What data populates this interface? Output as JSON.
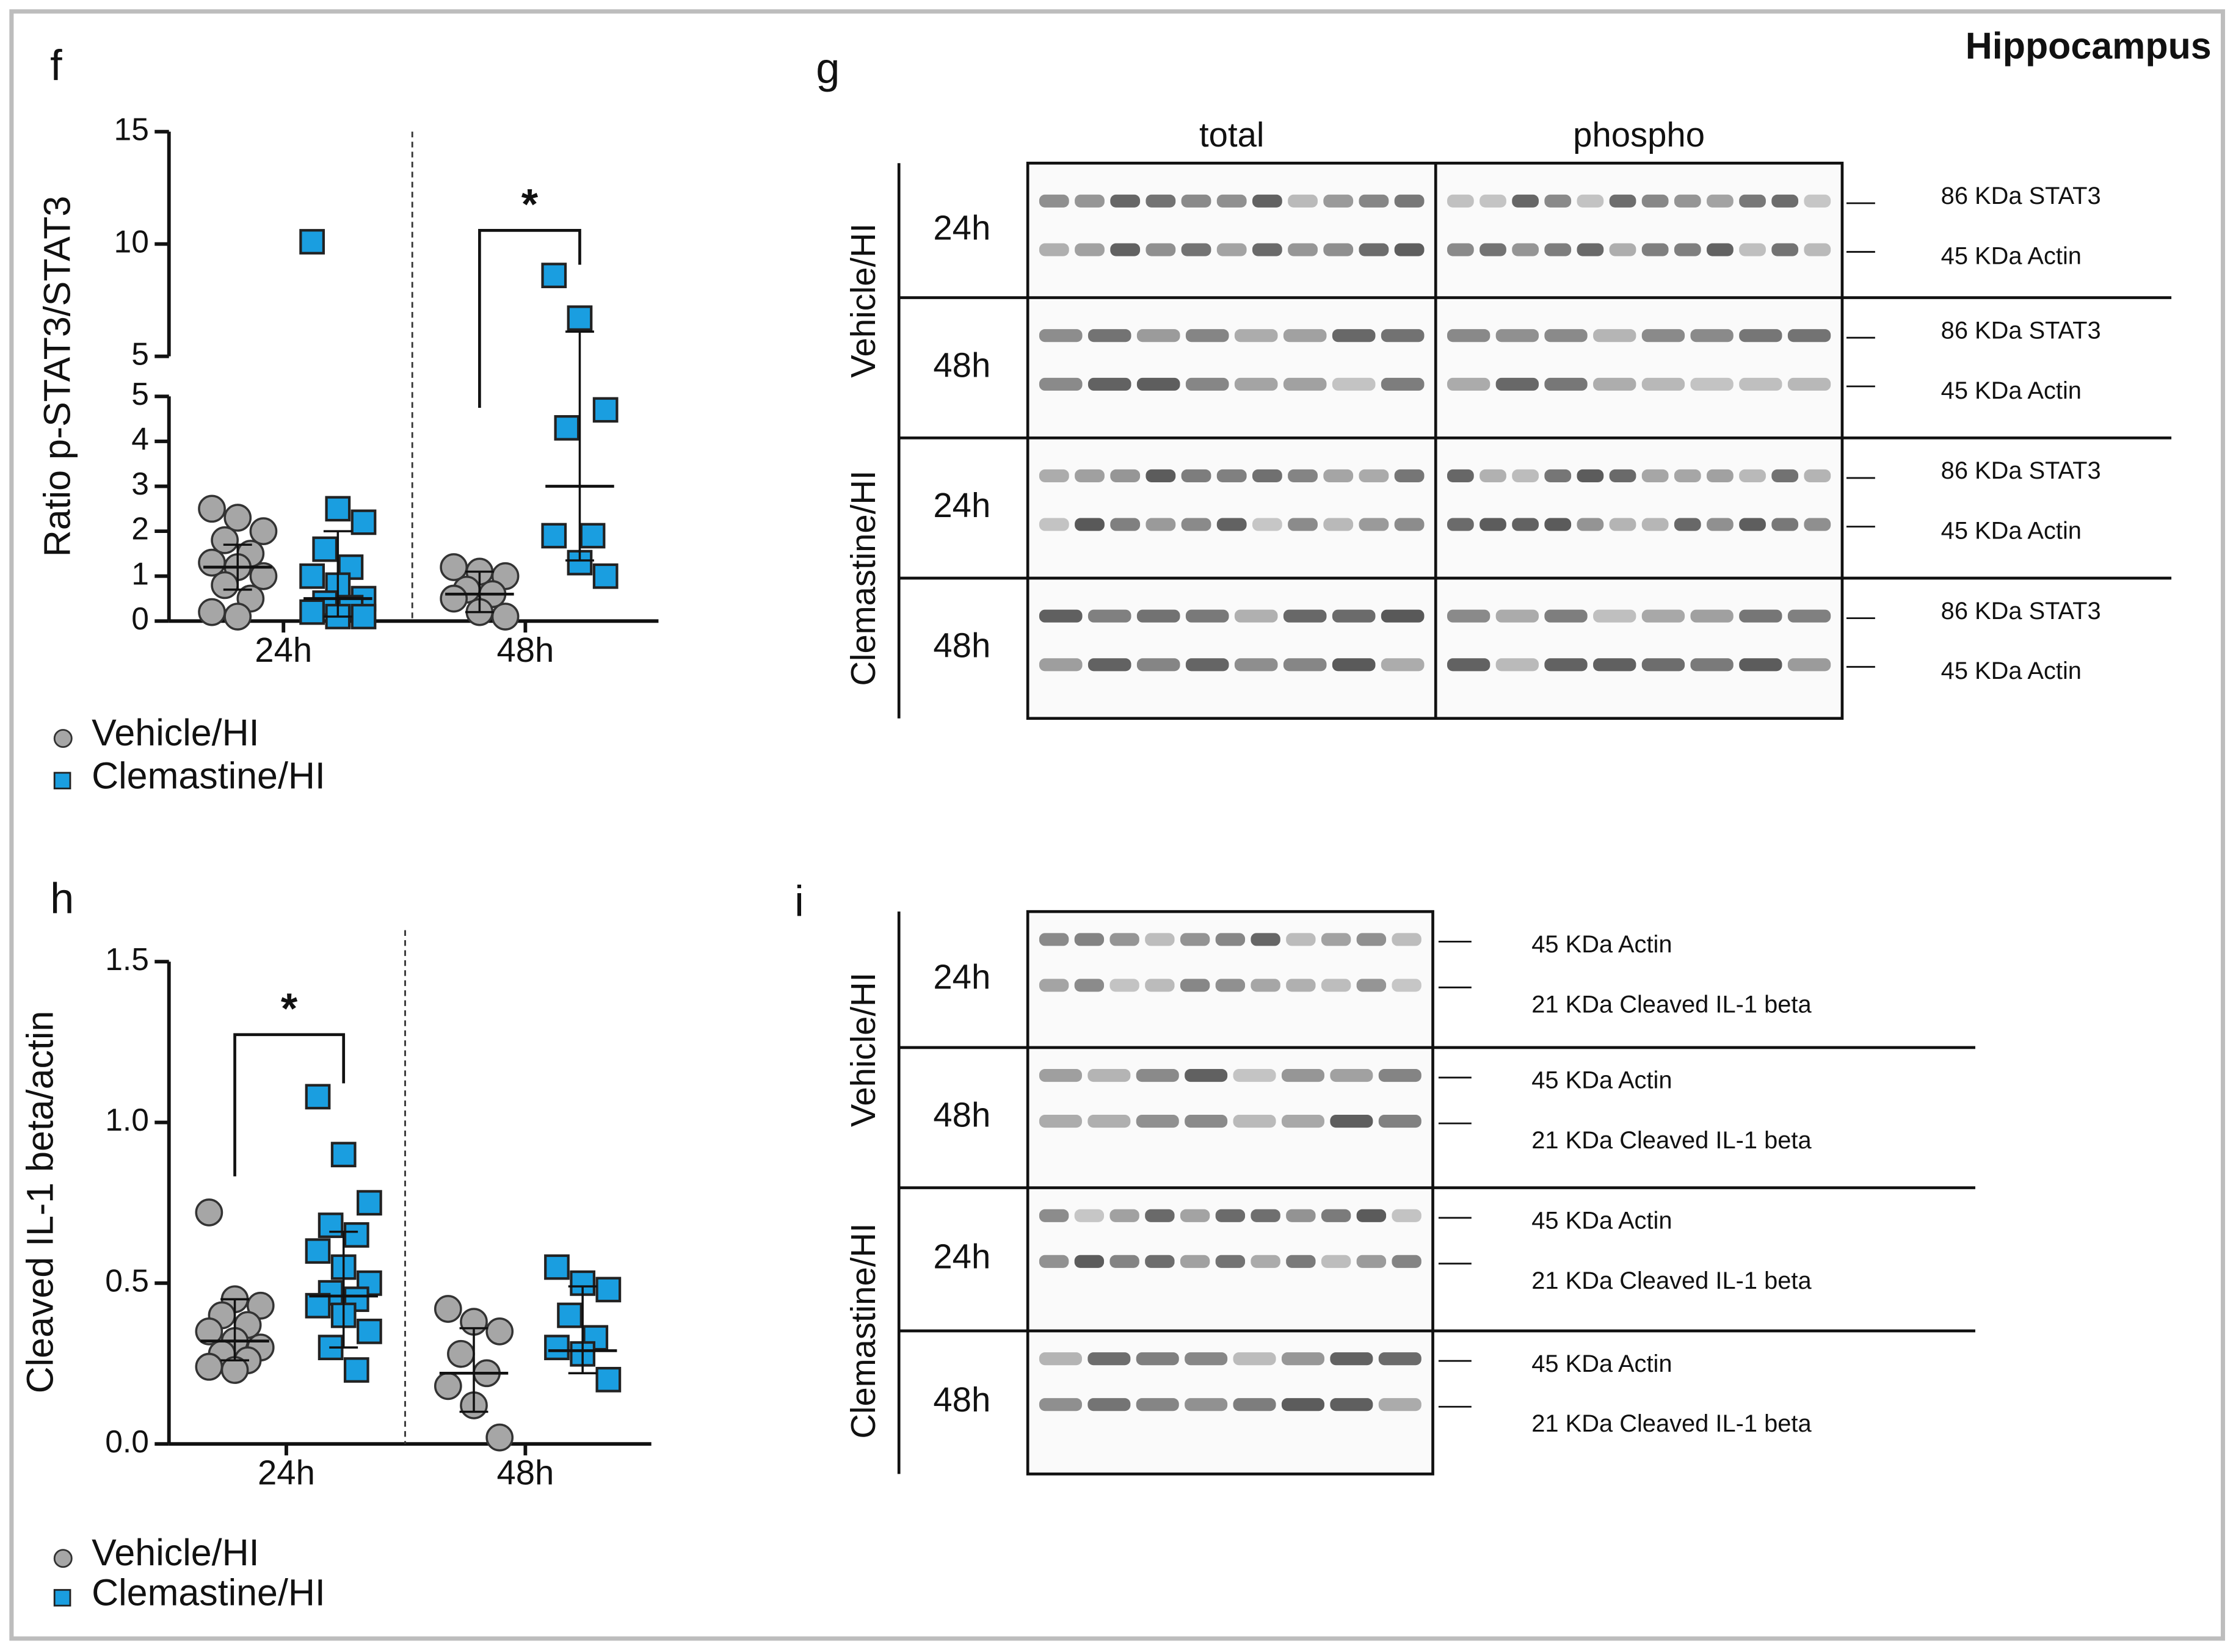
{
  "title": "Hippocampus",
  "chart_data": [
    {
      "type": "scatter",
      "panel": "f",
      "ylabel": "Ratio p-STAT3/STAT3",
      "categories": [
        "24h",
        "48h"
      ],
      "ysegments": [
        {
          "ylim": [
            0,
            5
          ],
          "yticks": [
            0,
            1,
            2,
            3,
            4,
            5
          ]
        },
        {
          "ylim": [
            5,
            15
          ],
          "yticks": [
            5,
            10,
            15
          ]
        }
      ],
      "series": [
        {
          "name": "Vehicle/HI",
          "color": "#a6a6a6",
          "marker": "circle",
          "values": [
            [
              2.5,
              2.3,
              2.0,
              1.8,
              1.5,
              1.3,
              1.2,
              1.0,
              0.8,
              0.5,
              0.2,
              0.1
            ],
            [
              1.2,
              1.1,
              1.0,
              0.7,
              0.6,
              0.5,
              0.2,
              0.1
            ]
          ],
          "center": [
            1.2,
            0.6
          ],
          "spread": [
            [
              0.7,
              1.7
            ],
            [
              0.2,
              1.1
            ]
          ]
        },
        {
          "name": "Clemastine/HI",
          "color": "#1a9ee0",
          "marker": "square",
          "values": [
            [
              10.1,
              2.5,
              2.2,
              1.6,
              1.2,
              1.0,
              0.8,
              0.5,
              0.4,
              0.3,
              0.2,
              0.1,
              0.1
            ],
            [
              8.6,
              6.7,
              4.7,
              4.3,
              1.9,
              1.9,
              1.3,
              1.0
            ]
          ],
          "center": [
            0.5,
            3.0
          ],
          "spread": [
            [
              0.1,
              2.0
            ],
            [
              1.35,
              6.1
            ]
          ]
        }
      ],
      "annotations": [
        {
          "text": "*"
        }
      ]
    },
    {
      "type": "scatter",
      "panel": "h",
      "ylabel": "Cleaved IL-1 beta/actin",
      "categories": [
        "24h",
        "48h"
      ],
      "ysegments": [
        {
          "ylim": [
            0,
            1.5
          ],
          "yticks": [
            {
              "value": 0,
              "label": "0.0"
            },
            {
              "value": 0.5,
              "label": "0.5"
            },
            {
              "value": 1,
              "label": "1.0"
            },
            1.5
          ]
        }
      ],
      "series": [
        {
          "name": "Vehicle/HI",
          "color": "#a6a6a6",
          "marker": "circle",
          "values": [
            [
              0.72,
              0.45,
              0.43,
              0.4,
              0.37,
              0.35,
              0.32,
              0.3,
              0.28,
              0.26,
              0.24,
              0.23
            ],
            [
              0.42,
              0.38,
              0.35,
              0.28,
              0.22,
              0.18,
              0.12,
              0.02
            ]
          ],
          "center": [
            0.32,
            0.22
          ],
          "spread": [
            [
              0.26,
              0.45
            ],
            [
              0.1,
              0.36
            ]
          ]
        },
        {
          "name": "Clemastine/HI",
          "color": "#1a9ee0",
          "marker": "square",
          "values": [
            [
              1.08,
              0.9,
              0.75,
              0.68,
              0.65,
              0.6,
              0.55,
              0.5,
              0.47,
              0.45,
              0.43,
              0.4,
              0.35,
              0.3,
              0.23
            ],
            [
              0.55,
              0.5,
              0.48,
              0.4,
              0.33,
              0.3,
              0.28,
              0.2
            ]
          ],
          "center": [
            0.46,
            0.29
          ],
          "spread": [
            [
              0.3,
              0.66
            ],
            [
              0.22,
              0.49
            ]
          ]
        }
      ],
      "annotations": [
        {
          "text": "*"
        }
      ]
    }
  ],
  "blots": [
    {
      "panel": "g",
      "column_headers": [
        "total",
        "phospho"
      ],
      "groups": [
        {
          "name": "Vehicle/HI",
          "rows": [
            {
              "time": "24h",
              "markers": [
                "86 KDa STAT3",
                "45 KDa Actin"
              ]
            },
            {
              "time": "48h",
              "markers": [
                "86 KDa STAT3",
                "45 KDa Actin"
              ]
            }
          ]
        },
        {
          "name": "Clemastine/HI",
          "rows": [
            {
              "time": "24h",
              "markers": [
                "86 KDa STAT3",
                "45 KDa Actin"
              ]
            },
            {
              "time": "48h",
              "markers": [
                "86 KDa STAT3",
                "45 KDa Actin"
              ]
            }
          ]
        }
      ]
    },
    {
      "panel": "i",
      "column_headers": [],
      "groups": [
        {
          "name": "Vehicle/HI",
          "rows": [
            {
              "time": "24h",
              "markers": [
                "45 KDa Actin",
                "21 KDa Cleaved IL-1 beta"
              ]
            },
            {
              "time": "48h",
              "markers": [
                "45 KDa Actin",
                "21 KDa Cleaved IL-1 beta"
              ]
            }
          ]
        },
        {
          "name": "Clemastine/HI",
          "rows": [
            {
              "time": "24h",
              "markers": [
                "45 KDa Actin",
                "21 KDa Cleaved IL-1 beta"
              ]
            },
            {
              "time": "48h",
              "markers": [
                "45 KDa Actin",
                "21 KDa Cleaved IL-1 beta"
              ]
            }
          ]
        }
      ]
    }
  ]
}
